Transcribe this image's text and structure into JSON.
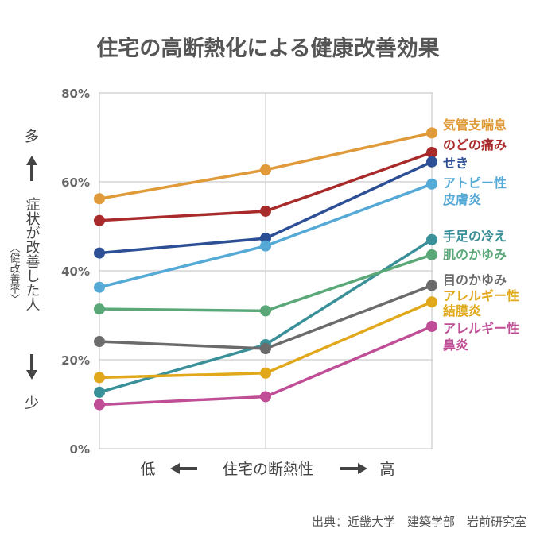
{
  "chart_data": {
    "type": "line",
    "title": "住宅の高断熱化による健康改善効果",
    "categories": [
      "低",
      "",
      "高"
    ],
    "x_axis_label": "住宅の断熱性",
    "y_axis_label": "症状が改善した人",
    "y_axis_sublabel": "〈健改善率〉",
    "y_axis_top": "多",
    "y_axis_bottom": "少",
    "ylim": [
      0,
      80
    ],
    "yticks": [
      "0%",
      "20%",
      "40%",
      "60%",
      "80%"
    ],
    "grid": true,
    "legend_placement": "right",
    "series": [
      {
        "name": "気管支喘息",
        "color": "#e09a3a",
        "values": [
          56.2,
          62.7,
          71.0
        ]
      },
      {
        "name": "のどの痛み",
        "color": "#a82a2a",
        "values": [
          51.3,
          53.4,
          66.6
        ]
      },
      {
        "name": "せき",
        "color": "#2c4f95",
        "values": [
          44.0,
          47.3,
          64.5
        ]
      },
      {
        "name": "アトピー性皮膚炎",
        "color": "#55a9d6",
        "values": [
          36.3,
          45.6,
          59.5
        ]
      },
      {
        "name": "手足の冷え",
        "color": "#3a9098",
        "values": [
          12.7,
          23.4,
          47.0
        ]
      },
      {
        "name": "肌のかゆみ",
        "color": "#5aa878",
        "values": [
          31.4,
          31.0,
          43.6
        ]
      },
      {
        "name": "目のかゆみ",
        "color": "#6b6b6b",
        "values": [
          24.1,
          22.5,
          36.7
        ]
      },
      {
        "name": "アレルギー性結膜炎",
        "color": "#e0a81a",
        "values": [
          16.0,
          17.0,
          33.0
        ]
      },
      {
        "name": "アレルギー性鼻炎",
        "color": "#c04e96",
        "values": [
          9.9,
          11.7,
          27.5
        ]
      }
    ],
    "legend_lines": [
      {
        "series": 0,
        "text": "気管支喘息"
      },
      {
        "series": 1,
        "text": "のどの痛み"
      },
      {
        "series": 2,
        "text": "せき"
      },
      {
        "series": 3,
        "text": "アトピー性"
      },
      {
        "series": 3,
        "text": "皮膚炎"
      },
      {
        "series": 4,
        "text": "手足の冷え"
      },
      {
        "series": 5,
        "text": "肌のかゆみ"
      },
      {
        "series": 6,
        "text": "目のかゆみ"
      },
      {
        "series": 7,
        "text": "アレルギー性"
      },
      {
        "series": 7,
        "text": "結膜炎"
      },
      {
        "series": 8,
        "text": "アレルギー性"
      },
      {
        "series": 8,
        "text": "鼻炎"
      }
    ],
    "source": "出典：近畿大学　建築学部　岩前研究室"
  }
}
